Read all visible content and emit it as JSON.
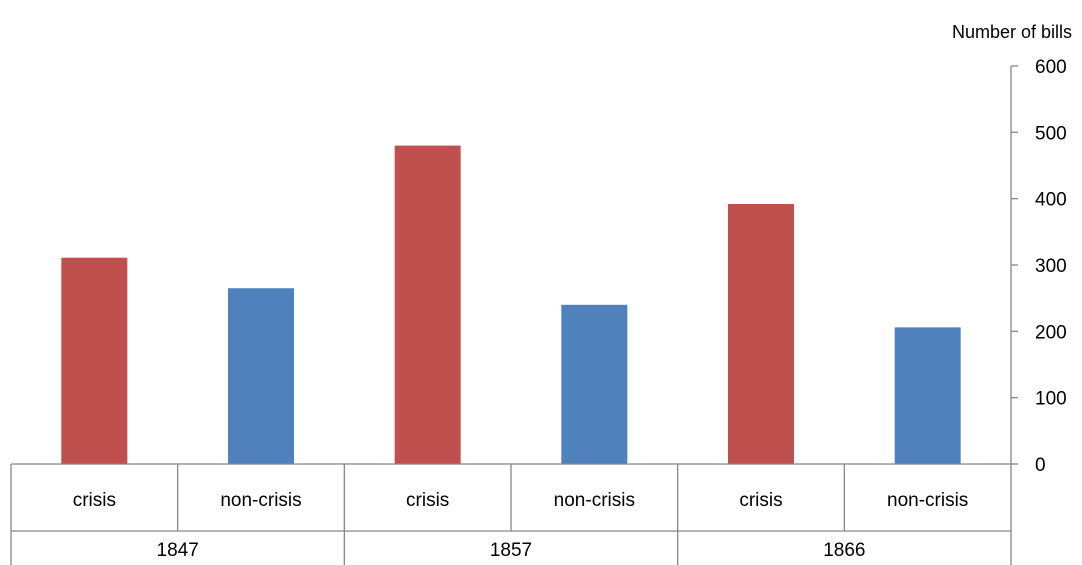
{
  "chart_data": {
    "type": "bar",
    "ylabel": "Number of bills",
    "ylim": [
      0,
      600
    ],
    "yticks": [
      0,
      100,
      200,
      300,
      400,
      500,
      600
    ],
    "y_axis_position": "right",
    "grid": false,
    "legend": "none",
    "groups": [
      {
        "label": "1847",
        "bars": [
          {
            "category": "crisis",
            "value": 311
          },
          {
            "category": "non-crisis",
            "value": 265
          }
        ]
      },
      {
        "label": "1857",
        "bars": [
          {
            "category": "crisis",
            "value": 480
          },
          {
            "category": "non-crisis",
            "value": 240
          }
        ]
      },
      {
        "label": "1866",
        "bars": [
          {
            "category": "crisis",
            "value": 392
          },
          {
            "category": "non-crisis",
            "value": 206
          }
        ]
      }
    ],
    "colors": {
      "crisis": "#c0504d",
      "non-crisis": "#4f81bd"
    }
  }
}
